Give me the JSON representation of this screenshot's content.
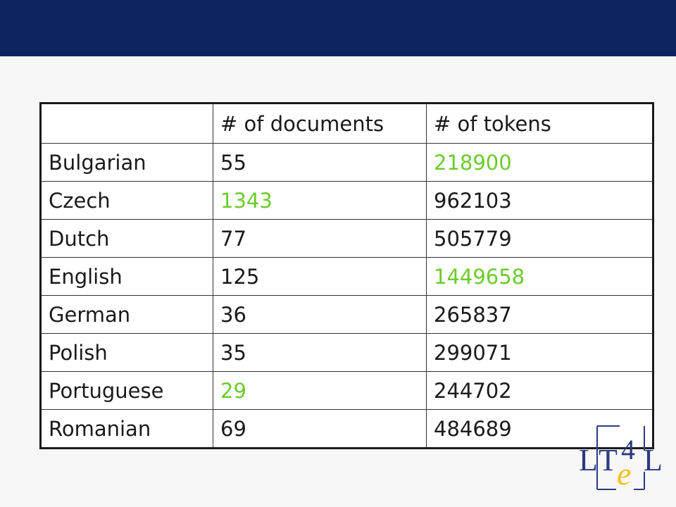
{
  "table": {
    "headers": [
      "",
      "# of documents",
      "# of tokens"
    ],
    "rows": [
      {
        "language": "Bulgarian",
        "documents": "55",
        "tokens": "218900",
        "highlight": "tokens"
      },
      {
        "language": "Czech",
        "documents": "1343",
        "tokens": "962103",
        "highlight": "documents"
      },
      {
        "language": "Dutch",
        "documents": "77",
        "tokens": "505779",
        "highlight": ""
      },
      {
        "language": "English",
        "documents": "125",
        "tokens": "1449658",
        "highlight": "tokens"
      },
      {
        "language": "German",
        "documents": "36",
        "tokens": "265837",
        "highlight": ""
      },
      {
        "language": "Polish",
        "documents": "35",
        "tokens": "299071",
        "highlight": ""
      },
      {
        "language": "Portuguese",
        "documents": "29",
        "tokens": "244702",
        "highlight": "documents"
      },
      {
        "language": "Romanian",
        "documents": "69",
        "tokens": "484689",
        "highlight": ""
      }
    ]
  },
  "colors": {
    "header_bar": "#0c2461",
    "highlight_green": "#6ccb2c",
    "logo_blue": "#2a3a82",
    "logo_yellow": "#f2c11a"
  },
  "logo": {
    "letters": "LT4eL"
  }
}
